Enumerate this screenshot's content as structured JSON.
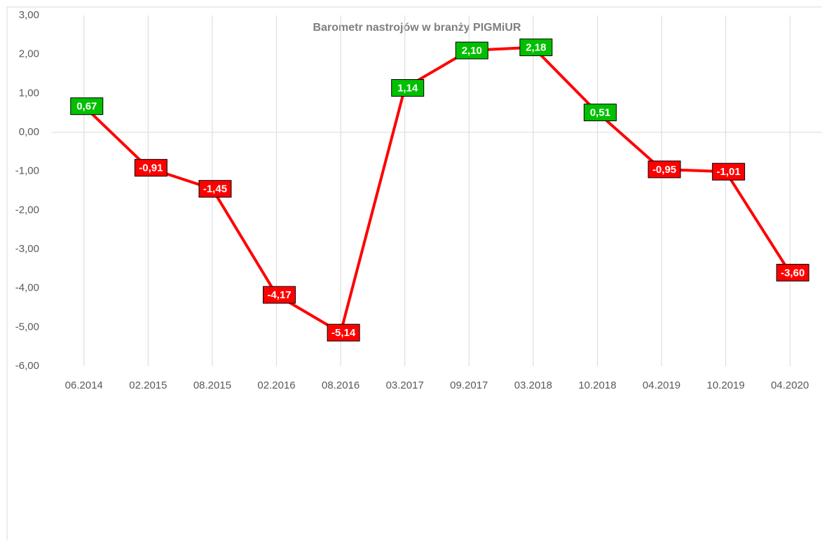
{
  "chart_data": {
    "type": "line",
    "title": "Barometr nastrojów w branży PIGMiUR",
    "categories": [
      "06.2014",
      "02.2015",
      "08.2015",
      "02.2016",
      "08.2016",
      "03.2017",
      "09.2017",
      "03.2018",
      "10.2018",
      "04.2019",
      "10.2019",
      "04.2020"
    ],
    "series": [
      {
        "name": "Barometr",
        "color": "#ff0000",
        "values": [
          0.67,
          -0.91,
          -1.45,
          -4.17,
          -5.14,
          1.14,
          2.1,
          2.18,
          0.51,
          -0.95,
          -1.01,
          -3.6
        ],
        "value_labels": [
          "0,67",
          "-0,91",
          "-1,45",
          "-4,17",
          "-5,14",
          "1,14",
          "2,10",
          "2,18",
          "0,51",
          "-0,95",
          "-1,01",
          "-3,60"
        ]
      }
    ],
    "positive_label_color": "#00c000",
    "negative_label_color": "#ff0000",
    "ylim": [
      -6,
      3
    ],
    "yticks": [
      {
        "value": 3,
        "label": "3,00"
      },
      {
        "value": 2,
        "label": "2,00"
      },
      {
        "value": 1,
        "label": "1,00"
      },
      {
        "value": 0,
        "label": "0,00"
      },
      {
        "value": -1,
        "label": "-1,00"
      },
      {
        "value": -2,
        "label": "-2,00"
      },
      {
        "value": -3,
        "label": "-3,00"
      },
      {
        "value": -4,
        "label": "-4,00"
      },
      {
        "value": -5,
        "label": "-5,00"
      },
      {
        "value": -6,
        "label": "-6,00"
      }
    ]
  }
}
